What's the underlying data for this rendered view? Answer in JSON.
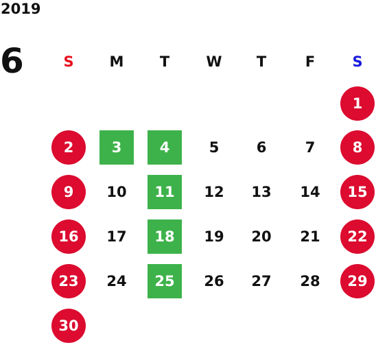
{
  "calendar": {
    "year": "2019",
    "month": "6",
    "weekdays": [
      {
        "label": "S",
        "color": "#e8101e"
      },
      {
        "label": "M",
        "color": "#111111"
      },
      {
        "label": "T",
        "color": "#111111"
      },
      {
        "label": "W",
        "color": "#111111"
      },
      {
        "label": "T",
        "color": "#111111"
      },
      {
        "label": "F",
        "color": "#111111"
      },
      {
        "label": "S",
        "color": "#1a1adc"
      }
    ],
    "first_weekday_index": 6,
    "days": [
      {
        "num": "1",
        "style": "holiday"
      },
      {
        "num": "2",
        "style": "holiday"
      },
      {
        "num": "3",
        "style": "marked"
      },
      {
        "num": "4",
        "style": "marked"
      },
      {
        "num": "5",
        "style": "plain"
      },
      {
        "num": "6",
        "style": "plain"
      },
      {
        "num": "7",
        "style": "plain"
      },
      {
        "num": "8",
        "style": "holiday"
      },
      {
        "num": "9",
        "style": "holiday"
      },
      {
        "num": "10",
        "style": "plain"
      },
      {
        "num": "11",
        "style": "marked"
      },
      {
        "num": "12",
        "style": "plain"
      },
      {
        "num": "13",
        "style": "plain"
      },
      {
        "num": "14",
        "style": "plain"
      },
      {
        "num": "15",
        "style": "holiday"
      },
      {
        "num": "16",
        "style": "holiday"
      },
      {
        "num": "17",
        "style": "plain"
      },
      {
        "num": "18",
        "style": "marked"
      },
      {
        "num": "19",
        "style": "plain"
      },
      {
        "num": "20",
        "style": "plain"
      },
      {
        "num": "21",
        "style": "plain"
      },
      {
        "num": "22",
        "style": "holiday"
      },
      {
        "num": "23",
        "style": "holiday"
      },
      {
        "num": "24",
        "style": "plain"
      },
      {
        "num": "25",
        "style": "marked"
      },
      {
        "num": "26",
        "style": "plain"
      },
      {
        "num": "27",
        "style": "plain"
      },
      {
        "num": "28",
        "style": "plain"
      },
      {
        "num": "29",
        "style": "holiday"
      },
      {
        "num": "30",
        "style": "holiday"
      }
    ],
    "colors": {
      "holiday_bg": "#dc0b2f",
      "marked_bg": "#3db24a",
      "text": "#111111"
    }
  }
}
